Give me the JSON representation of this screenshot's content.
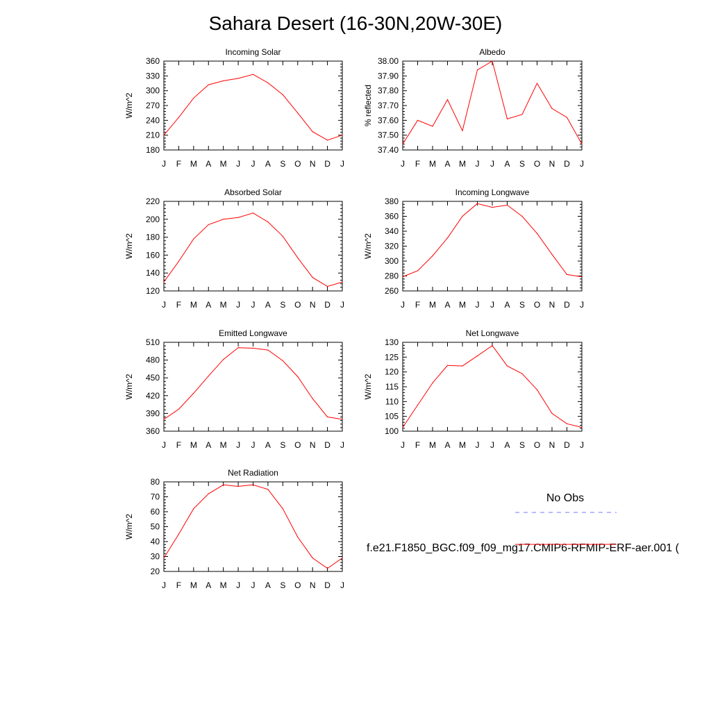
{
  "title": "Sahara Desert (16-30N,20W-30E)",
  "months": [
    "J",
    "F",
    "M",
    "A",
    "M",
    "J",
    "J",
    "A",
    "S",
    "O",
    "N",
    "D",
    "J"
  ],
  "legend": {
    "obs_label": "No Obs",
    "obs_color": "#7777ff",
    "model_label": "f.e21.F1850_BGC.f09_f09_mg17.CMIP6-RFMIP-ERF-aer.001 (",
    "model_color": "#ff0000"
  },
  "chart_data": [
    {
      "type": "line",
      "title": "Incoming Solar",
      "ylabel": "W/m^2",
      "ylim": [
        180,
        360
      ],
      "yticks": [
        "180",
        "210",
        "240",
        "270",
        "300",
        "330",
        "360"
      ],
      "series": [
        {
          "values": [
            210,
            246,
            285,
            312,
            320,
            325,
            333,
            316,
            292,
            255,
            217,
            200,
            210
          ]
        }
      ]
    },
    {
      "type": "line",
      "title": "Albedo",
      "ylabel": "% reflected",
      "ylim": [
        37.4,
        38.0
      ],
      "yticks": [
        "37.40",
        "37.50",
        "37.60",
        "37.70",
        "37.80",
        "37.90",
        "38.00"
      ],
      "series": [
        {
          "values": [
            37.44,
            37.6,
            37.56,
            37.74,
            37.53,
            37.94,
            38.0,
            37.61,
            37.64,
            37.85,
            37.68,
            37.62,
            37.44
          ]
        }
      ]
    },
    {
      "type": "line",
      "title": "Absorbed Solar",
      "ylabel": "W/m^2",
      "ylim": [
        120,
        220
      ],
      "yticks": [
        "120",
        "140",
        "160",
        "180",
        "200",
        "220"
      ],
      "series": [
        {
          "values": [
            130,
            153,
            178,
            194,
            200,
            202,
            207,
            197,
            181,
            157,
            135,
            125,
            130
          ]
        }
      ]
    },
    {
      "type": "line",
      "title": "Incoming Longwave",
      "ylabel": "W/m^2",
      "ylim": [
        260,
        380
      ],
      "yticks": [
        "260",
        "280",
        "300",
        "320",
        "340",
        "360",
        "380"
      ],
      "series": [
        {
          "values": [
            279,
            287,
            307,
            331,
            360,
            377,
            372,
            375,
            360,
            337,
            309,
            282,
            279
          ]
        }
      ]
    },
    {
      "type": "line",
      "title": "Emitted Longwave",
      "ylabel": "W/m^2",
      "ylim": [
        360,
        510
      ],
      "yticks": [
        "360",
        "390",
        "420",
        "450",
        "480",
        "510"
      ],
      "series": [
        {
          "values": [
            380,
            397,
            424,
            453,
            481,
            501,
            500,
            497,
            479,
            452,
            415,
            384,
            380
          ]
        }
      ]
    },
    {
      "type": "line",
      "title": "Net Longwave",
      "ylabel": "W/m^2",
      "ylim": [
        100,
        130
      ],
      "yticks": [
        "100",
        "105",
        "110",
        "115",
        "120",
        "125",
        "130"
      ],
      "series": [
        {
          "values": [
            101.3,
            108.8,
            116.3,
            122.2,
            122.0,
            125.4,
            128.9,
            122.0,
            119.4,
            114.0,
            106.0,
            102.5,
            101.3
          ]
        }
      ]
    },
    {
      "type": "line",
      "title": "Net Radiation",
      "ylabel": "W/m^2",
      "ylim": [
        20,
        80
      ],
      "yticks": [
        "20",
        "30",
        "40",
        "50",
        "60",
        "70",
        "80"
      ],
      "series": [
        {
          "values": [
            29,
            45,
            62,
            72,
            78,
            77,
            78,
            75,
            62,
            43,
            29,
            22,
            29
          ]
        }
      ]
    }
  ]
}
